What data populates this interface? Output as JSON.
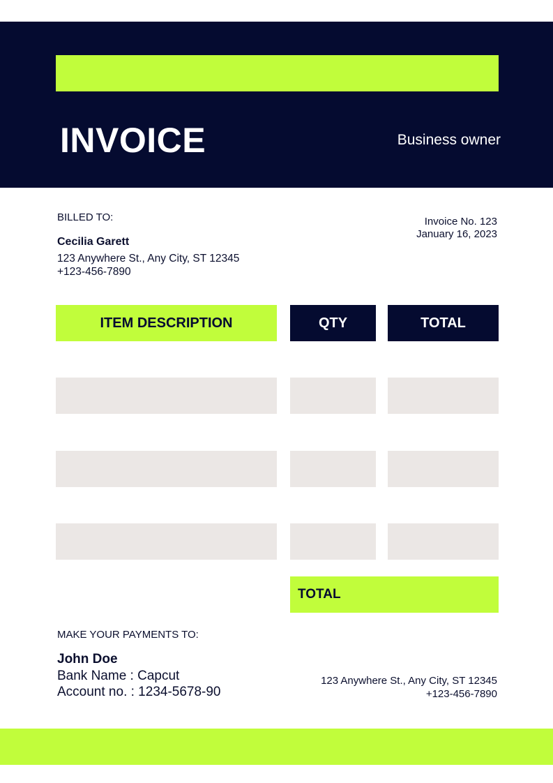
{
  "header": {
    "title": "INVOICE",
    "subtitle": "Business owner"
  },
  "billed_to": {
    "label": "BILLED TO:",
    "name": "Cecilia Garett",
    "address": "123 Anywhere St., Any City, ST 12345",
    "phone": "+123-456-7890"
  },
  "invoice": {
    "number": "Invoice No. 123",
    "date": "January 16, 2023"
  },
  "table": {
    "columns": [
      "ITEM DESCRIPTION",
      "QTY",
      "TOTAL"
    ],
    "total_label": "TOTAL"
  },
  "payment": {
    "label": "MAKE YOUR PAYMENTS TO:",
    "name": "John Doe",
    "bank": "Bank Name : Capcut",
    "account": "Account no. : 1234-5678-90"
  },
  "contact": {
    "address": "123 Anywhere St., Any City, ST 12345",
    "phone": "+123-456-7890"
  },
  "colors": {
    "navy": "#050b30",
    "lime": "#c1fd3b",
    "gray": "#ebe7e5"
  }
}
